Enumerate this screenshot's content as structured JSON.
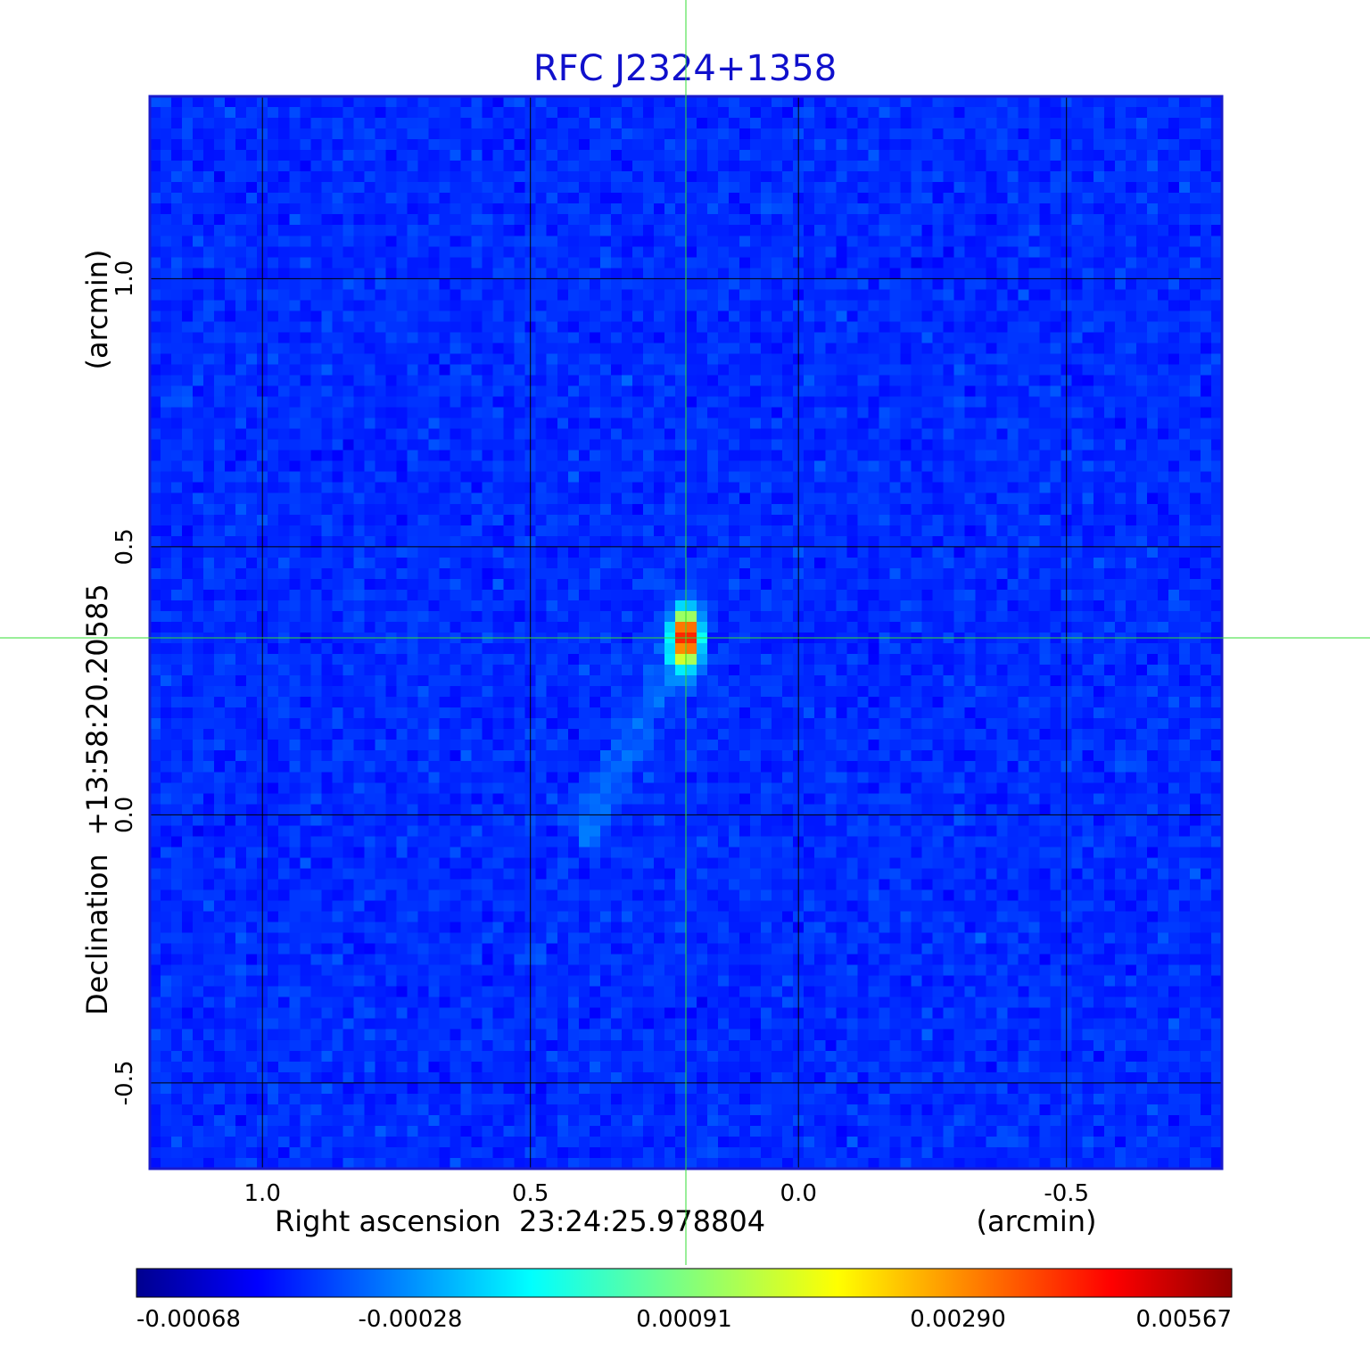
{
  "chart_data": {
    "type": "heatmap",
    "title": "RFC J2324+1358",
    "xlabel": "Right ascension  23:24:25.978804",
    "xunit": "(arcmin)",
    "ylabel": "Declination  +13:58:20.20585",
    "yunit": "(arcmin)",
    "x_ticks": [
      "1.0",
      "0.5",
      "0.0",
      "-0.5"
    ],
    "y_ticks": [
      "1.0",
      "0.5",
      "0.0",
      "-0.5"
    ],
    "x_tick_values": [
      1.0,
      0.5,
      0.0,
      -0.5
    ],
    "y_tick_values": [
      1.0,
      0.5,
      0.0,
      -0.5
    ],
    "xlim": [
      1.21,
      -0.79
    ],
    "ylim": [
      -0.66,
      1.34
    ],
    "grid": true,
    "crosshair": {
      "x": 0.21,
      "y": 0.33,
      "color": "#33dd33"
    },
    "colormap": "jet",
    "colorbar": {
      "ticks": [
        "-0.00068",
        "-0.00028",
        "0.00091",
        "0.00290",
        "0.00567"
      ],
      "min": -0.00068,
      "max": 0.00567
    },
    "features": [
      {
        "label": "peak",
        "x": 0.21,
        "y": 0.33,
        "peak_value": 0.00567
      },
      {
        "label": "jet",
        "from": [
          0.21,
          0.33
        ],
        "to": [
          0.38,
          0.0
        ]
      }
    ]
  }
}
